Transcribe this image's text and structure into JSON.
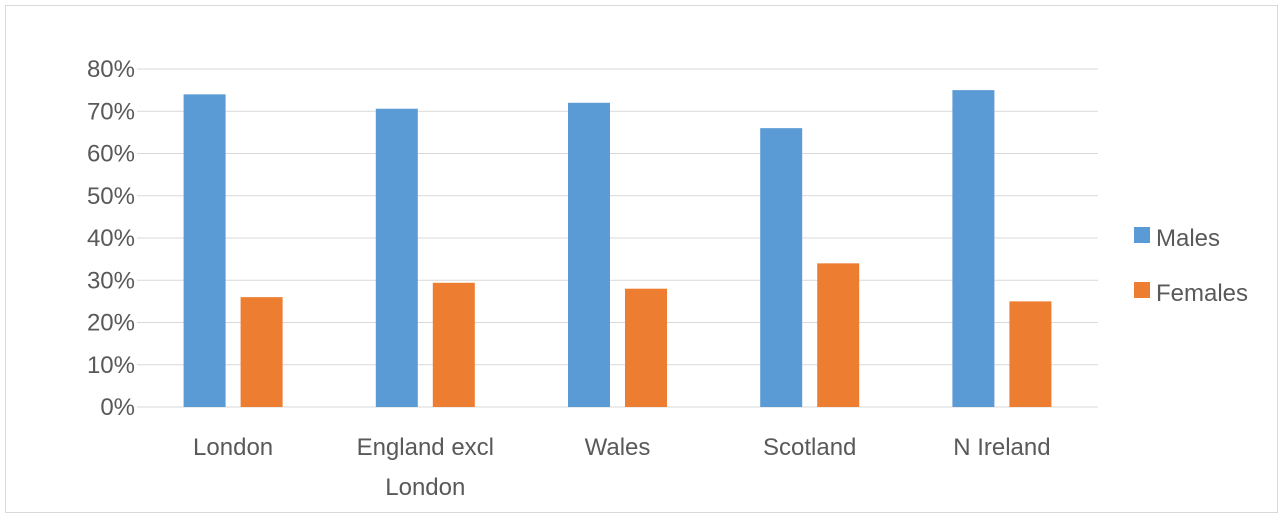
{
  "chart_data": {
    "type": "bar",
    "title": "",
    "xlabel": "",
    "ylabel": "",
    "categories": [
      "London",
      "England excl London",
      "Wales",
      "Scotland",
      "N Ireland"
    ],
    "category_lines": [
      [
        "London"
      ],
      [
        "England excl",
        "London"
      ],
      [
        "Wales"
      ],
      [
        "Scotland"
      ],
      [
        "N Ireland"
      ]
    ],
    "ylim": [
      0,
      0.8
    ],
    "yticks": [
      0,
      0.1,
      0.2,
      0.3,
      0.4,
      0.5,
      0.6,
      0.7,
      0.8
    ],
    "ytick_labels": [
      "0%",
      "10%",
      "20%",
      "30%",
      "40%",
      "50%",
      "60%",
      "70%",
      "80%"
    ],
    "grid": true,
    "legend_position": "right",
    "series": [
      {
        "name": "Males",
        "color": "#5b9bd5",
        "values": [
          0.74,
          0.706,
          0.72,
          0.66,
          0.75
        ]
      },
      {
        "name": "Females",
        "color": "#ed7d31",
        "values": [
          0.26,
          0.294,
          0.28,
          0.34,
          0.25
        ]
      }
    ]
  }
}
